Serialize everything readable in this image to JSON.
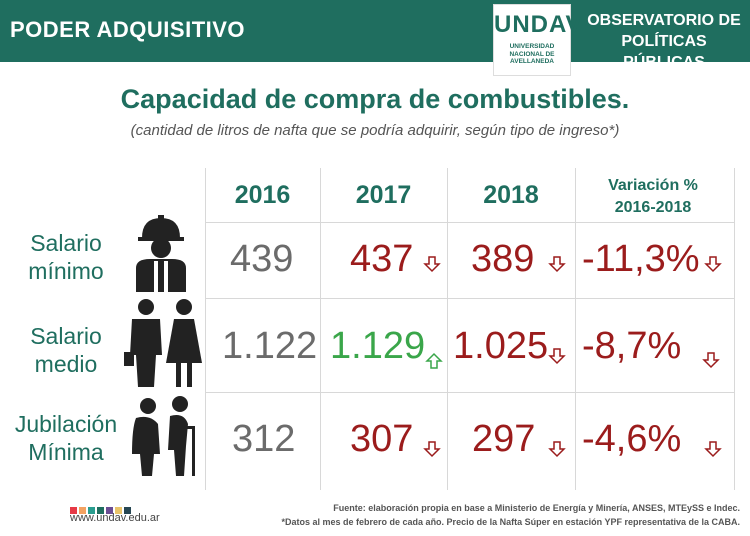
{
  "header": {
    "left_title": "PODER ADQUISITIVO",
    "logo_main": "UNDAV",
    "logo_sub": [
      "UNIVERSIDAD",
      "NACIONAL DE",
      "AVELLANEDA"
    ],
    "right_title": [
      "OBSERVATORIO DE",
      "POLÍTICAS PÚBLICAS"
    ]
  },
  "chart_data": {
    "type": "table",
    "title": "Capacidad de compra de combustibles.",
    "subtitle": "(cantidad de litros de nafta que se podría adquirir, según tipo de ingreso*)",
    "columns": [
      "2016",
      "2017",
      "2018",
      "Variación %",
      "2016-2018"
    ],
    "rows": [
      {
        "label": [
          "Salario",
          "mínimo"
        ],
        "values": [
          "439",
          "437",
          "389",
          "-11,3%"
        ],
        "trend": [
          "none",
          "down",
          "down",
          "down"
        ],
        "colors": [
          "#6b6b6b",
          "#9b1c1c",
          "#9b1c1c",
          "#9b1c1c"
        ]
      },
      {
        "label": [
          "Salario",
          "medio"
        ],
        "values": [
          "1.122",
          "1.129",
          "1.025",
          "-8,7%"
        ],
        "trend": [
          "none",
          "up",
          "down",
          "down"
        ],
        "colors": [
          "#6b6b6b",
          "#3aa64a",
          "#9b1c1c",
          "#9b1c1c"
        ]
      },
      {
        "label": [
          "Jubilación",
          "Mínima"
        ],
        "values": [
          "312",
          "307",
          "297",
          "-4,6%"
        ],
        "trend": [
          "none",
          "down",
          "down",
          "down"
        ],
        "colors": [
          "#6b6b6b",
          "#9b1c1c",
          "#9b1c1c",
          "#9b1c1c"
        ]
      }
    ],
    "icons": [
      "worker-icon",
      "couple-icon",
      "elderly-couple-icon"
    ]
  },
  "footer": {
    "url": "www.undav.edu.ar",
    "source": "Fuente: elaboración propia en base a Ministerio de Energía y Minería, ANSES, MTEySS e Indec.",
    "note": "*Datos al mes de febrero de cada año. Precio de la Nafta Súper en estación YPF representativa de la CABA.",
    "dot_colors": [
      "#e63946",
      "#f4a261",
      "#2a9d8f",
      "#1f6e5f",
      "#6a4c93",
      "#e9c46a",
      "#264653"
    ]
  },
  "colors": {
    "brand": "#1f6e5f",
    "down": "#9b1c1c",
    "up": "#3aa64a",
    "neutral": "#6b6b6b"
  }
}
